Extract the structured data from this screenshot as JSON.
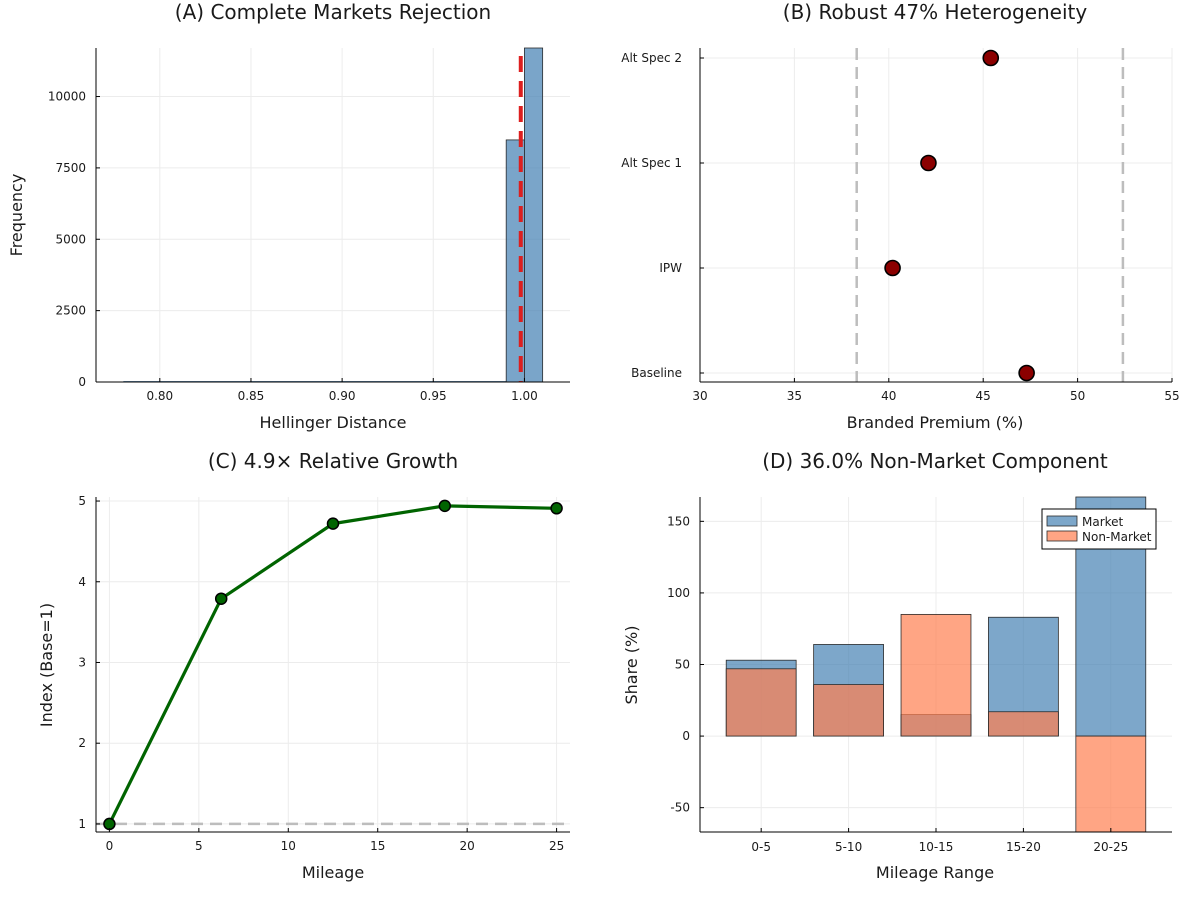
{
  "chart_data": [
    {
      "panel": "A",
      "type": "bar",
      "title": "(A) Complete Markets Rejection",
      "xlabel": "Hellinger Distance",
      "ylabel": "Frequency",
      "xlim": [
        0.765,
        1.025
      ],
      "ylim": [
        0,
        11700
      ],
      "xticks": [
        0.8,
        0.85,
        0.9,
        0.95,
        1.0
      ],
      "xtick_labels": [
        "0.80",
        "0.85",
        "0.90",
        "0.95",
        "1.00"
      ],
      "yticks": [
        0,
        2500,
        5000,
        7500,
        10000
      ],
      "ytick_labels": [
        "0",
        "2500",
        "5000",
        "7500",
        "10000"
      ],
      "bins": [
        {
          "x0": 0.99,
          "x1": 1.0,
          "value": 8480
        },
        {
          "x0": 1.0,
          "x1": 1.01,
          "value": 11700
        }
      ],
      "vline": {
        "x": 0.998,
        "style": "dashed",
        "color": "#dd1f1f"
      },
      "bar_color": "#4682b4",
      "grid": true
    },
    {
      "panel": "B",
      "type": "scatter",
      "title": "(B) Robust 47% Heterogeneity",
      "xlabel": "Branded Premium (%)",
      "ylabel": "",
      "xlim": [
        30,
        55
      ],
      "xticks": [
        30,
        35,
        40,
        45,
        50,
        55
      ],
      "xtick_labels": [
        "30",
        "35",
        "40",
        "45",
        "50",
        "55"
      ],
      "categories": [
        "Baseline",
        "IPW",
        "Alt Spec 1",
        "Alt Spec 2"
      ],
      "values": [
        47.3,
        40.2,
        42.1,
        45.4
      ],
      "vlines": [
        38.3,
        52.4
      ],
      "marker_color": "#8b0000",
      "grid": true
    },
    {
      "panel": "C",
      "type": "line",
      "title": "(C) 4.9× Relative Growth",
      "xlabel": "Mileage",
      "ylabel": "Index (Base=1)",
      "xlim": [
        -0.75,
        25.75
      ],
      "ylim": [
        0.9,
        5.05
      ],
      "xticks": [
        0,
        5,
        10,
        15,
        20,
        25
      ],
      "xtick_labels": [
        "0",
        "5",
        "10",
        "15",
        "20",
        "25"
      ],
      "yticks": [
        1,
        2,
        3,
        4,
        5
      ],
      "ytick_labels": [
        "1",
        "2",
        "3",
        "4",
        "5"
      ],
      "x": [
        0,
        6.25,
        12.5,
        18.75,
        25
      ],
      "y": [
        1.0,
        3.79,
        4.72,
        4.94,
        4.91
      ],
      "hline": 1,
      "line_color": "#006400",
      "grid": true
    },
    {
      "panel": "D",
      "type": "bar",
      "title": "(D) 36.0% Non-Market Component",
      "xlabel": "Mileage Range",
      "ylabel": "Share (%)",
      "ylim": [
        -67,
        167
      ],
      "yticks": [
        -50,
        0,
        50,
        100,
        150
      ],
      "ytick_labels": [
        "-50",
        "0",
        "50",
        "100",
        "150"
      ],
      "categories": [
        "0-5",
        "5-10",
        "10-15",
        "15-20",
        "20-25"
      ],
      "series": [
        {
          "name": "Market",
          "values": [
            53,
            64,
            15,
            83,
            167
          ],
          "color": "#4682b4"
        },
        {
          "name": "Non-Market",
          "values": [
            47,
            36,
            85,
            17,
            -67
          ],
          "color": "#ff7f50"
        }
      ],
      "legend": "top-right",
      "grid": true
    }
  ]
}
